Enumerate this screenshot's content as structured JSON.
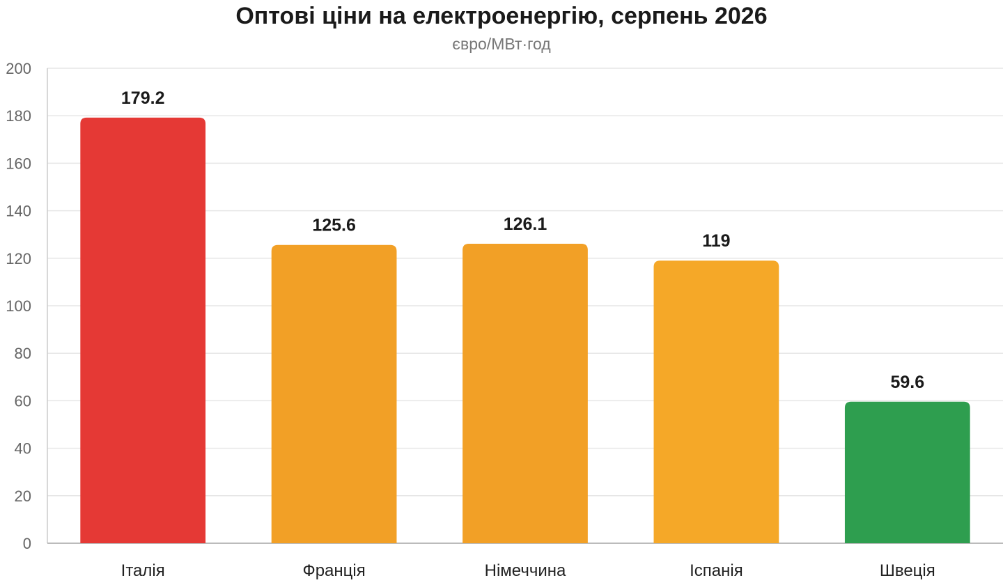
{
  "chart_data": {
    "type": "bar",
    "title": "Оптові ціни на електроенергію, серпень 2026",
    "subtitle": "євро/МВт·год",
    "categories": [
      "Італія",
      "Франція",
      "Німеччина",
      "Іспанія",
      "Швеція"
    ],
    "values": [
      179.2,
      125.6,
      126.1,
      119,
      59.6
    ],
    "value_labels": [
      "179.2",
      "125.6",
      "126.1",
      "119",
      "59.6"
    ],
    "bar_colors": [
      "#e53935",
      "#f2a026",
      "#f2a026",
      "#f5a828",
      "#2e9e4f"
    ],
    "ylim": [
      0,
      200
    ],
    "yticks": [
      0,
      20,
      40,
      60,
      80,
      100,
      120,
      140,
      160,
      180,
      200
    ],
    "ytick_labels": [
      "0",
      "20",
      "40",
      "60",
      "80",
      "100",
      "120",
      "140",
      "160",
      "180",
      "200"
    ],
    "grid": true,
    "legend": "none",
    "xlabel": "",
    "ylabel": ""
  }
}
